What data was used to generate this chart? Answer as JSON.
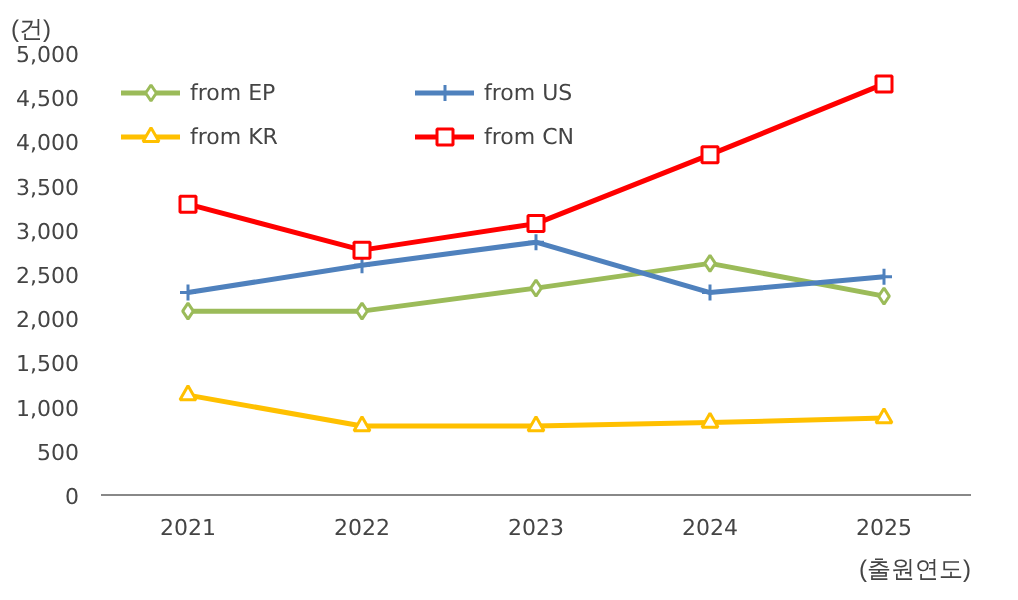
{
  "chart_data": {
    "type": "line",
    "ylabel": "(건)",
    "xlabel": "(출원연도)",
    "categories": [
      "2021",
      "2022",
      "2023",
      "2024",
      "2025"
    ],
    "ylim": [
      0,
      5000
    ],
    "yticks": [
      {
        "value": 0,
        "label": "0"
      },
      {
        "value": 500,
        "label": "500"
      },
      {
        "value": 1000,
        "label": "1,000"
      },
      {
        "value": 1500,
        "label": "1,500"
      },
      {
        "value": 2000,
        "label": "2,000"
      },
      {
        "value": 2500,
        "label": "2,500"
      },
      {
        "value": 3000,
        "label": "3,000"
      },
      {
        "value": 3500,
        "label": "3,500"
      },
      {
        "value": 4000,
        "label": "4,000"
      },
      {
        "value": 4500,
        "label": "4,500"
      },
      {
        "value": 5000,
        "label": "5,000"
      }
    ],
    "grid": false,
    "legend": "top left",
    "series": [
      {
        "name": "from EP",
        "color": "#9bbb59",
        "marker": "diamond",
        "values": [
          2080,
          2080,
          2340,
          2620,
          2250
        ]
      },
      {
        "name": "from US",
        "color": "#4f81bd",
        "marker": "cross",
        "values": [
          2290,
          2600,
          2860,
          2290,
          2470
        ]
      },
      {
        "name": "from KR",
        "color": "#ffc000",
        "marker": "triangle",
        "values": [
          1130,
          780,
          780,
          820,
          870
        ]
      },
      {
        "name": "from CN",
        "color": "#ff0000",
        "marker": "square",
        "values": [
          3290,
          2770,
          3070,
          3850,
          4650
        ]
      }
    ]
  }
}
